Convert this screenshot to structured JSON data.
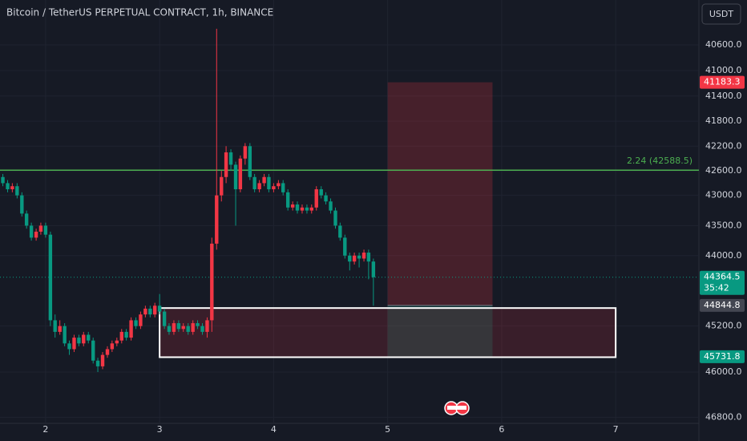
{
  "chart_data": {
    "type": "candlestick",
    "title": "Bitcoin / TetherUS PERPETUAL CONTRACT, 1h, BINANCE",
    "currency": "USDT",
    "log_scale": true,
    "inverted": true,
    "grid": true,
    "up_color": "#089981",
    "down_color": "#f23645",
    "xlim": [
      1.6,
      7.73
    ],
    "xticks": [
      2,
      3,
      4,
      5,
      6,
      7
    ],
    "ylim": [
      39910,
      46910
    ],
    "yticks": [
      {
        "value": 40600,
        "label": "40600.0"
      },
      {
        "value": 41000,
        "label": "41000.0"
      },
      {
        "value": 41400,
        "label": "41400.0"
      },
      {
        "value": 41800,
        "label": "41800.0"
      },
      {
        "value": 42200,
        "label": "42200.0"
      },
      {
        "value": 42600,
        "label": "42600.0"
      },
      {
        "value": 43000,
        "label": "43000.0"
      },
      {
        "value": 43500,
        "label": "43500.0"
      },
      {
        "value": 44000,
        "label": "44000.0"
      },
      {
        "value": 45200,
        "label": "45200.0"
      },
      {
        "value": 46000,
        "label": "46000.0"
      },
      {
        "value": 46800,
        "label": "46800.0"
      }
    ],
    "x": [
      1.625,
      1.667,
      1.708,
      1.75,
      1.792,
      1.833,
      1.875,
      1.917,
      1.958,
      2.0,
      2.042,
      2.083,
      2.125,
      2.167,
      2.208,
      2.25,
      2.292,
      2.333,
      2.375,
      2.417,
      2.458,
      2.5,
      2.542,
      2.583,
      2.625,
      2.667,
      2.708,
      2.75,
      2.792,
      2.833,
      2.875,
      2.917,
      2.958,
      3.0,
      3.042,
      3.083,
      3.125,
      3.167,
      3.208,
      3.25,
      3.292,
      3.333,
      3.375,
      3.417,
      3.458,
      3.5,
      3.542,
      3.583,
      3.625,
      3.667,
      3.708,
      3.75,
      3.792,
      3.833,
      3.875,
      3.917,
      3.958,
      4.0,
      4.042,
      4.083,
      4.125,
      4.167,
      4.208,
      4.25,
      4.292,
      4.333,
      4.375,
      4.417,
      4.458,
      4.5,
      4.542,
      4.583,
      4.625,
      4.667,
      4.708,
      4.75,
      4.792,
      4.833,
      4.875
    ],
    "ohlc": [
      [
        42700,
        42850,
        42650,
        42800
      ],
      [
        42800,
        42950,
        42750,
        42900
      ],
      [
        42900,
        42950,
        42800,
        42850
      ],
      [
        42850,
        43050,
        42800,
        43000
      ],
      [
        43000,
        43350,
        42950,
        43300
      ],
      [
        43300,
        43550,
        43250,
        43500
      ],
      [
        43500,
        43750,
        43450,
        43700
      ],
      [
        43700,
        43750,
        43550,
        43600
      ],
      [
        43600,
        43650,
        43450,
        43500
      ],
      [
        43500,
        43700,
        43450,
        43650
      ],
      [
        43650,
        45200,
        43600,
        45100
      ],
      [
        45100,
        45400,
        45000,
        45300
      ],
      [
        45300,
        45350,
        45100,
        45200
      ],
      [
        45200,
        45550,
        45150,
        45500
      ],
      [
        45500,
        45700,
        45450,
        45600
      ],
      [
        45600,
        45650,
        45350,
        45400
      ],
      [
        45400,
        45550,
        45350,
        45500
      ],
      [
        45500,
        45550,
        45300,
        45350
      ],
      [
        45350,
        45500,
        45300,
        45450
      ],
      [
        45450,
        45850,
        45400,
        45800
      ],
      [
        45800,
        46000,
        45750,
        45900
      ],
      [
        45900,
        45950,
        45650,
        45700
      ],
      [
        45700,
        45750,
        45550,
        45600
      ],
      [
        45600,
        45650,
        45450,
        45500
      ],
      [
        45500,
        45550,
        45400,
        45450
      ],
      [
        45450,
        45500,
        45250,
        45300
      ],
      [
        45300,
        45450,
        45250,
        45400
      ],
      [
        45400,
        45450,
        45050,
        45100
      ],
      [
        45100,
        45250,
        45050,
        45200
      ],
      [
        45200,
        45250,
        44950,
        45000
      ],
      [
        45000,
        45050,
        44850,
        44900
      ],
      [
        44900,
        45050,
        44850,
        45000
      ],
      [
        45000,
        45050,
        44800,
        44850
      ],
      [
        44850,
        45000,
        44650,
        44950
      ],
      [
        44950,
        45250,
        44900,
        45200
      ],
      [
        45200,
        45350,
        45150,
        45300
      ],
      [
        45300,
        45350,
        45100,
        45150
      ],
      [
        45150,
        45300,
        45100,
        45250
      ],
      [
        45250,
        45300,
        45150,
        45200
      ],
      [
        45200,
        45350,
        45150,
        45300
      ],
      [
        45300,
        45350,
        45100,
        45150
      ],
      [
        45150,
        45250,
        45100,
        45200
      ],
      [
        45200,
        45350,
        45150,
        45300
      ],
      [
        45300,
        45400,
        45050,
        45100
      ],
      [
        45100,
        45300,
        43700,
        43800
      ],
      [
        43800,
        43900,
        40350,
        43000
      ],
      [
        43000,
        43100,
        42600,
        42700
      ],
      [
        42700,
        42800,
        42200,
        42300
      ],
      [
        42300,
        42600,
        42250,
        42500
      ],
      [
        42500,
        43500,
        42450,
        42900
      ],
      [
        42900,
        42950,
        42350,
        42400
      ],
      [
        42400,
        42500,
        42150,
        42200
      ],
      [
        42200,
        42750,
        42150,
        42700
      ],
      [
        42700,
        42950,
        42650,
        42900
      ],
      [
        42900,
        42950,
        42750,
        42800
      ],
      [
        42800,
        42850,
        42650,
        42700
      ],
      [
        42700,
        42950,
        42650,
        42900
      ],
      [
        42900,
        42950,
        42800,
        42850
      ],
      [
        42850,
        42900,
        42750,
        42800
      ],
      [
        42800,
        43000,
        42750,
        42950
      ],
      [
        42950,
        43250,
        42900,
        43200
      ],
      [
        43200,
        43250,
        43100,
        43150
      ],
      [
        43150,
        43300,
        43100,
        43250
      ],
      [
        43250,
        43300,
        43150,
        43200
      ],
      [
        43200,
        43300,
        43150,
        43250
      ],
      [
        43250,
        43300,
        43150,
        43200
      ],
      [
        43200,
        43250,
        42850,
        42900
      ],
      [
        42900,
        43050,
        42850,
        43000
      ],
      [
        43000,
        43150,
        42950,
        43100
      ],
      [
        43100,
        43300,
        43050,
        43250
      ],
      [
        43250,
        43550,
        43200,
        43500
      ],
      [
        43500,
        43750,
        43450,
        43700
      ],
      [
        43700,
        44050,
        43650,
        44000
      ],
      [
        44000,
        44250,
        43950,
        44100
      ],
      [
        44100,
        44150,
        43950,
        44000
      ],
      [
        44000,
        44200,
        43950,
        44050
      ],
      [
        44050,
        44100,
        43900,
        43950
      ],
      [
        43950,
        44400,
        43900,
        44100
      ],
      [
        44100,
        44850,
        44050,
        44364.5
      ]
    ],
    "last_price": 44364.5,
    "countdown": "35:42",
    "level": {
      "value": 42588.5,
      "label": "2.24 (42588.5)",
      "color": "#4caf50"
    },
    "position": {
      "x": [
        5.0,
        5.92
      ],
      "target": 41183.3,
      "entry": 44844.8,
      "stop": 45731.8
    },
    "zone": {
      "x": [
        3.0,
        7.0
      ],
      "top": 44890,
      "bottom": 45740
    }
  }
}
